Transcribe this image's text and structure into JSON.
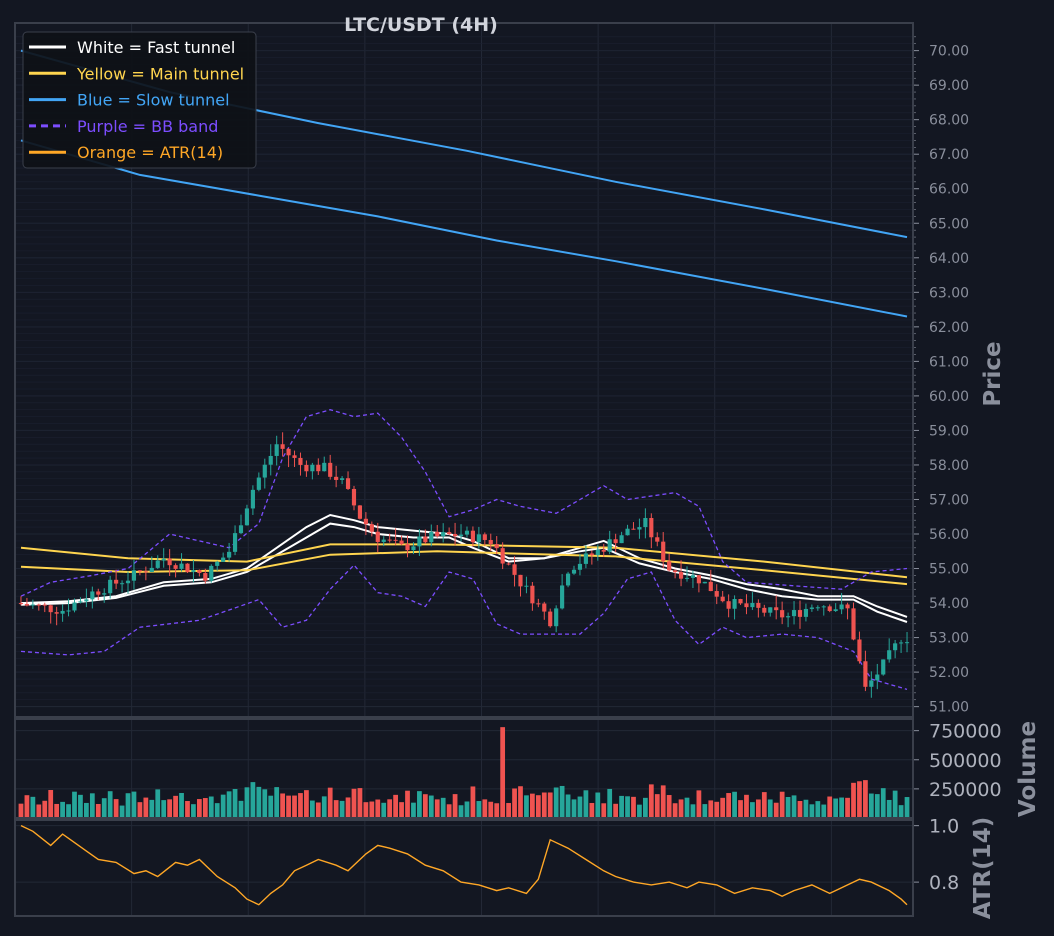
{
  "colors": {
    "background": "#131722",
    "panel_border": "#3a3f4b",
    "grid": "#232836",
    "text": "#d1d4dc",
    "axis_text": "#8a8f9c",
    "up": "#26a69a",
    "down": "#ef5350",
    "fast": "#ffffff",
    "main": "#ffd54f",
    "slow": "#42a5f5",
    "bb": "#7c4dff",
    "atr": "#ffa726"
  },
  "chart_data": {
    "type": "line",
    "title": "LTC/USDT (4H)",
    "candle_count": 150,
    "candles_shape": [
      [
        0,
        54.0
      ],
      [
        8,
        53.8
      ],
      [
        13,
        54.3
      ],
      [
        20,
        54.8
      ],
      [
        25,
        55.3
      ],
      [
        32,
        54.8
      ],
      [
        36,
        55.5
      ],
      [
        40,
        57.3
      ],
      [
        44,
        58.6
      ],
      [
        48,
        58.0
      ],
      [
        52,
        57.9
      ],
      [
        55,
        57.5
      ],
      [
        58,
        56.5
      ],
      [
        61,
        55.9
      ],
      [
        65,
        55.6
      ],
      [
        70,
        55.9
      ],
      [
        75,
        56.0
      ],
      [
        80,
        55.8
      ],
      [
        85,
        54.6
      ],
      [
        90,
        53.5
      ],
      [
        93,
        55.0
      ],
      [
        98,
        55.5
      ],
      [
        102,
        56.0
      ],
      [
        106,
        56.3
      ],
      [
        110,
        55.0
      ],
      [
        115,
        54.7
      ],
      [
        120,
        54.0
      ],
      [
        125,
        53.8
      ],
      [
        130,
        53.6
      ],
      [
        135,
        54.0
      ],
      [
        140,
        53.8
      ],
      [
        143,
        51.5
      ],
      [
        146,
        52.2
      ],
      [
        149,
        53.0
      ]
    ],
    "price_axis": {
      "label": "Price",
      "range": [
        50.7,
        70.8
      ],
      "ticks": [
        "70.00",
        "69.00",
        "68.00",
        "67.00",
        "66.00",
        "65.00",
        "64.00",
        "63.00",
        "62.00",
        "61.00",
        "60.00",
        "59.00",
        "58.00",
        "57.00",
        "56.00",
        "55.00",
        "54.00",
        "53.00",
        "52.00",
        "51.00"
      ]
    },
    "volume_axis": {
      "label": "Volume",
      "range": [
        0,
        850000
      ],
      "ticks": [
        "750000",
        "500000",
        "250000"
      ]
    },
    "atr_axis": {
      "label": "ATR(14)",
      "range": [
        0.68,
        1.02
      ],
      "ticks": [
        "1.0",
        "0.8"
      ]
    },
    "series": [
      {
        "name": "White = Fast tunnel",
        "color": "#ffffff",
        "style": "solid",
        "upper": [
          [
            0,
            54.0
          ],
          [
            8,
            54.05
          ],
          [
            16,
            54.2
          ],
          [
            24,
            54.6
          ],
          [
            32,
            54.7
          ],
          [
            38,
            55.0
          ],
          [
            43,
            55.6
          ],
          [
            48,
            56.2
          ],
          [
            52,
            56.55
          ],
          [
            56,
            56.4
          ],
          [
            60,
            56.2
          ],
          [
            66,
            56.1
          ],
          [
            72,
            56.0
          ],
          [
            76,
            55.8
          ],
          [
            82,
            55.3
          ],
          [
            88,
            55.3
          ],
          [
            94,
            55.6
          ],
          [
            98,
            55.8
          ],
          [
            104,
            55.3
          ],
          [
            110,
            55.0
          ],
          [
            116,
            54.8
          ],
          [
            122,
            54.55
          ],
          [
            128,
            54.4
          ],
          [
            134,
            54.2
          ],
          [
            140,
            54.2
          ],
          [
            144,
            53.9
          ],
          [
            149,
            53.6
          ]
        ],
        "lower": [
          [
            0,
            53.95
          ],
          [
            8,
            54.0
          ],
          [
            16,
            54.15
          ],
          [
            24,
            54.5
          ],
          [
            32,
            54.6
          ],
          [
            38,
            54.9
          ],
          [
            43,
            55.4
          ],
          [
            48,
            55.9
          ],
          [
            52,
            56.3
          ],
          [
            56,
            56.2
          ],
          [
            60,
            56.0
          ],
          [
            66,
            55.9
          ],
          [
            72,
            55.9
          ],
          [
            76,
            55.6
          ],
          [
            82,
            55.2
          ],
          [
            88,
            55.3
          ],
          [
            94,
            55.5
          ],
          [
            98,
            55.6
          ],
          [
            104,
            55.15
          ],
          [
            110,
            54.9
          ],
          [
            116,
            54.7
          ],
          [
            122,
            54.4
          ],
          [
            128,
            54.2
          ],
          [
            134,
            54.1
          ],
          [
            140,
            54.1
          ],
          [
            144,
            53.75
          ],
          [
            149,
            53.45
          ]
        ]
      },
      {
        "name": "Yellow = Main tunnel",
        "color": "#ffd54f",
        "style": "solid",
        "upper": [
          [
            0,
            55.6
          ],
          [
            18,
            55.3
          ],
          [
            38,
            55.2
          ],
          [
            52,
            55.7
          ],
          [
            70,
            55.7
          ],
          [
            100,
            55.6
          ],
          [
            125,
            55.2
          ],
          [
            149,
            54.75
          ]
        ],
        "lower": [
          [
            0,
            55.05
          ],
          [
            18,
            54.9
          ],
          [
            38,
            54.95
          ],
          [
            52,
            55.4
          ],
          [
            70,
            55.5
          ],
          [
            100,
            55.35
          ],
          [
            125,
            54.95
          ],
          [
            149,
            54.55
          ]
        ]
      },
      {
        "name": "Blue = Slow tunnel",
        "color": "#42a5f5",
        "style": "solid",
        "upper": [
          [
            0,
            70.0
          ],
          [
            25,
            68.8
          ],
          [
            50,
            67.9
          ],
          [
            75,
            67.1
          ],
          [
            100,
            66.2
          ],
          [
            125,
            65.4
          ],
          [
            149,
            64.6
          ]
        ],
        "lower": [
          [
            0,
            67.4
          ],
          [
            20,
            66.4
          ],
          [
            40,
            65.8
          ],
          [
            60,
            65.2
          ],
          [
            80,
            64.5
          ],
          [
            100,
            63.9
          ],
          [
            125,
            63.1
          ],
          [
            149,
            62.3
          ]
        ]
      },
      {
        "name": "Purple = BB band",
        "color": "#7c4dff",
        "style": "dashed",
        "upper": [
          [
            0,
            54.2
          ],
          [
            5,
            54.6
          ],
          [
            12,
            54.8
          ],
          [
            18,
            55.0
          ],
          [
            25,
            56.0
          ],
          [
            30,
            55.8
          ],
          [
            35,
            55.6
          ],
          [
            40,
            56.3
          ],
          [
            44,
            58.2
          ],
          [
            48,
            59.4
          ],
          [
            52,
            59.6
          ],
          [
            56,
            59.4
          ],
          [
            60,
            59.5
          ],
          [
            64,
            58.8
          ],
          [
            68,
            57.8
          ],
          [
            72,
            56.5
          ],
          [
            76,
            56.7
          ],
          [
            80,
            57.0
          ],
          [
            84,
            56.8
          ],
          [
            90,
            56.6
          ],
          [
            94,
            57.0
          ],
          [
            98,
            57.4
          ],
          [
            102,
            57.0
          ],
          [
            110,
            57.2
          ],
          [
            114,
            56.8
          ],
          [
            118,
            55.2
          ],
          [
            122,
            54.6
          ],
          [
            130,
            54.5
          ],
          [
            138,
            54.4
          ],
          [
            143,
            54.9
          ],
          [
            149,
            55.0
          ]
        ],
        "lower": [
          [
            0,
            52.6
          ],
          [
            8,
            52.5
          ],
          [
            14,
            52.6
          ],
          [
            20,
            53.3
          ],
          [
            25,
            53.4
          ],
          [
            30,
            53.5
          ],
          [
            35,
            53.8
          ],
          [
            40,
            54.1
          ],
          [
            44,
            53.3
          ],
          [
            48,
            53.5
          ],
          [
            52,
            54.4
          ],
          [
            56,
            55.1
          ],
          [
            60,
            54.3
          ],
          [
            64,
            54.2
          ],
          [
            68,
            53.9
          ],
          [
            72,
            54.9
          ],
          [
            76,
            54.7
          ],
          [
            80,
            53.4
          ],
          [
            84,
            53.1
          ],
          [
            90,
            53.1
          ],
          [
            94,
            53.1
          ],
          [
            98,
            53.7
          ],
          [
            102,
            54.7
          ],
          [
            106,
            54.9
          ],
          [
            110,
            53.5
          ],
          [
            114,
            52.8
          ],
          [
            118,
            53.3
          ],
          [
            122,
            53.0
          ],
          [
            128,
            53.1
          ],
          [
            134,
            53.0
          ],
          [
            140,
            52.6
          ],
          [
            143,
            51.8
          ],
          [
            149,
            51.5
          ]
        ]
      },
      {
        "name": "Orange = ATR(14)",
        "color": "#ffa726",
        "style": "solid",
        "points": [
          [
            0,
            1.0
          ],
          [
            2,
            0.98
          ],
          [
            5,
            0.93
          ],
          [
            7,
            0.97
          ],
          [
            9,
            0.94
          ],
          [
            11,
            0.91
          ],
          [
            13,
            0.88
          ],
          [
            16,
            0.87
          ],
          [
            19,
            0.83
          ],
          [
            21,
            0.84
          ],
          [
            23,
            0.82
          ],
          [
            26,
            0.87
          ],
          [
            28,
            0.86
          ],
          [
            30,
            0.88
          ],
          [
            33,
            0.82
          ],
          [
            36,
            0.78
          ],
          [
            38,
            0.74
          ],
          [
            40,
            0.72
          ],
          [
            42,
            0.76
          ],
          [
            44,
            0.79
          ],
          [
            46,
            0.84
          ],
          [
            48,
            0.86
          ],
          [
            50,
            0.88
          ],
          [
            53,
            0.86
          ],
          [
            55,
            0.84
          ],
          [
            58,
            0.9
          ],
          [
            60,
            0.93
          ],
          [
            62,
            0.92
          ],
          [
            65,
            0.9
          ],
          [
            68,
            0.86
          ],
          [
            71,
            0.84
          ],
          [
            74,
            0.8
          ],
          [
            77,
            0.79
          ],
          [
            80,
            0.77
          ],
          [
            82,
            0.78
          ],
          [
            85,
            0.76
          ],
          [
            87,
            0.81
          ],
          [
            89,
            0.95
          ],
          [
            92,
            0.92
          ],
          [
            95,
            0.88
          ],
          [
            98,
            0.84
          ],
          [
            100,
            0.82
          ],
          [
            103,
            0.8
          ],
          [
            106,
            0.79
          ],
          [
            109,
            0.8
          ],
          [
            112,
            0.78
          ],
          [
            114,
            0.8
          ],
          [
            117,
            0.79
          ],
          [
            120,
            0.76
          ],
          [
            123,
            0.78
          ],
          [
            126,
            0.77
          ],
          [
            128,
            0.75
          ],
          [
            130,
            0.77
          ],
          [
            133,
            0.79
          ],
          [
            136,
            0.76
          ],
          [
            139,
            0.79
          ],
          [
            141,
            0.81
          ],
          [
            143,
            0.8
          ],
          [
            146,
            0.77
          ],
          [
            148,
            0.74
          ],
          [
            149,
            0.72
          ]
        ]
      }
    ],
    "legend": {
      "placement": "top-left"
    }
  }
}
